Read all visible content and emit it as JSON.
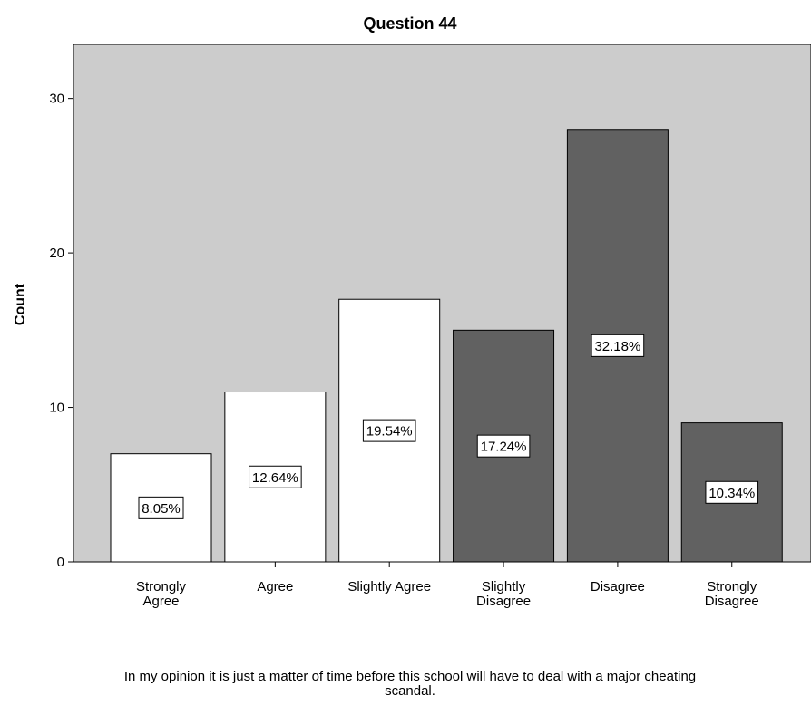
{
  "chart_data": {
    "type": "bar",
    "title": "Question 44",
    "xlabel": "In my opinion it is just a matter of time before this school will have to deal with a major cheating scandal.",
    "ylabel": "Count",
    "ylim": [
      0,
      33.5
    ],
    "yticks": [
      0,
      10,
      20,
      30
    ],
    "grid": false,
    "categories": [
      "Strongly Agree",
      "Agree",
      "Slightly Agree",
      "Slightly Disagree",
      "Disagree",
      "Strongly Disagree"
    ],
    "values": [
      7,
      11,
      17,
      15,
      28,
      9
    ],
    "percent_labels": [
      "8.05%",
      "12.64%",
      "19.54%",
      "17.24%",
      "32.18%",
      "10.34%"
    ],
    "bar_colors": [
      "#ffffff",
      "#ffffff",
      "#ffffff",
      "#616161",
      "#616161",
      "#616161"
    ],
    "plot_background": "#cccccc"
  }
}
